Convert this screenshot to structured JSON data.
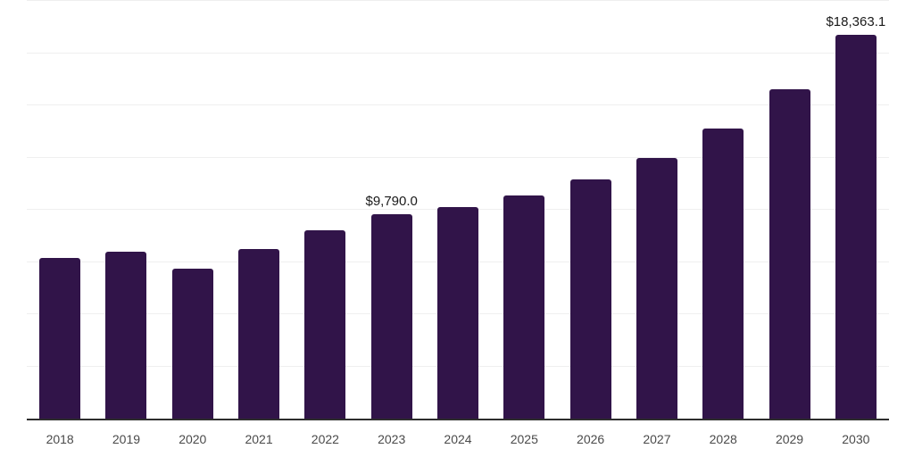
{
  "chart": {
    "background_color": "#ffffff",
    "bar_color": "#311449",
    "grid_color": "#efefef",
    "axis_color": "#2e2e2e",
    "x_label_color": "#4a4a4a",
    "data_label_color": "#1a1a1a"
  },
  "chart_data": {
    "type": "bar",
    "title": "",
    "xlabel": "",
    "ylabel": "",
    "legend": "none",
    "y_axis_tick_labels_visible": false,
    "grid": "horizontal",
    "ylim": [
      0,
      20000
    ],
    "grid_step": 2500,
    "categories": [
      "2018",
      "2019",
      "2020",
      "2021",
      "2022",
      "2023",
      "2024",
      "2025",
      "2026",
      "2027",
      "2028",
      "2029",
      "2030"
    ],
    "values": [
      7700,
      8000,
      7190,
      8130,
      9020,
      9790.0,
      10130,
      10690,
      11450,
      12480,
      13890,
      15760,
      18363.1
    ],
    "data_labels": [
      "",
      "",
      "",
      "",
      "",
      "$9,790.0",
      "",
      "",
      "",
      "",
      "",
      "",
      "$18,363.1"
    ]
  }
}
